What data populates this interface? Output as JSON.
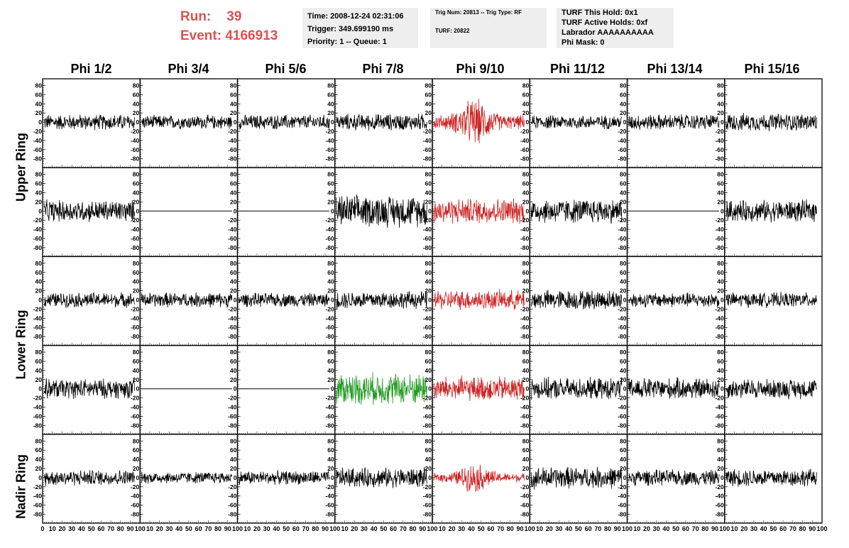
{
  "run_info": {
    "run_label": "Run:",
    "run_value": "39",
    "event_label": "Event:",
    "event_value": "4166913",
    "color": "#d9534f"
  },
  "time_box": {
    "time": "Time: 2008-12-24 02:31:06",
    "trigger": "Trigger: 349.699190 ms",
    "priority": "Priority: 1 -- Queue: 1"
  },
  "trig_box": {
    "trig": "Trig Num: 20813 -- Trig Type: RF",
    "turf": "TURF: 20822"
  },
  "turf_box": {
    "this_hold": "TURF This Hold: 0x1",
    "active_holds": "TURF Active Holds: 0xf",
    "labrador": "Labrador AAAAAAAAAA",
    "phi_mask": "Phi Mask: 0"
  },
  "columns": [
    "Phi 1/2",
    "Phi 3/4",
    "Phi 5/6",
    "Phi 7/8",
    "Phi 9/10",
    "Phi 11/12",
    "Phi 13/14",
    "Phi 15/16"
  ],
  "ring_labels": [
    "Upper Ring",
    "Lower Ring",
    "Nadir Ring"
  ],
  "chart_data": {
    "type": "line",
    "description_rows": 5,
    "columns": 8,
    "ylim": [
      -90,
      90
    ],
    "xlim": [
      0,
      100
    ],
    "y_ticks": [
      80,
      60,
      40,
      20,
      0,
      -20,
      -40,
      -60,
      -80
    ],
    "x_ticks": [
      0,
      10,
      20,
      30,
      40,
      50,
      60,
      70,
      80,
      90,
      100
    ],
    "colors": {
      "normal": "#000000",
      "triggered": "#cc2222",
      "green": "#229922"
    },
    "panels": [
      [
        {
          "style": "normal",
          "amp": 16
        },
        {
          "style": "normal",
          "amp": 14
        },
        {
          "style": "normal",
          "amp": 15
        },
        {
          "style": "normal",
          "amp": 17
        },
        {
          "style": "triggered",
          "amp": 40,
          "burst": true
        },
        {
          "style": "normal",
          "amp": 14
        },
        {
          "style": "normal",
          "amp": 16
        },
        {
          "style": "normal",
          "amp": 18
        }
      ],
      [
        {
          "style": "normal",
          "amp": 22
        },
        {
          "style": "flat",
          "amp": 0
        },
        {
          "style": "flat",
          "amp": 0
        },
        {
          "style": "normal",
          "amp": 32
        },
        {
          "style": "triggered",
          "amp": 26
        },
        {
          "style": "normal",
          "amp": 25
        },
        {
          "style": "flat",
          "amp": 0
        },
        {
          "style": "normal",
          "amp": 22
        }
      ],
      [
        {
          "style": "normal",
          "amp": 15
        },
        {
          "style": "normal",
          "amp": 15
        },
        {
          "style": "normal",
          "amp": 14
        },
        {
          "style": "normal",
          "amp": 18
        },
        {
          "style": "triggered",
          "amp": 20
        },
        {
          "style": "normal",
          "amp": 20
        },
        {
          "style": "normal",
          "amp": 15
        },
        {
          "style": "normal",
          "amp": 15
        }
      ],
      [
        {
          "style": "normal",
          "amp": 20
        },
        {
          "style": "flat",
          "amp": 0
        },
        {
          "style": "flat",
          "amp": 0
        },
        {
          "style": "green",
          "amp": 32
        },
        {
          "style": "triggered",
          "amp": 25
        },
        {
          "style": "normal",
          "amp": 22
        },
        {
          "style": "normal",
          "amp": 22
        },
        {
          "style": "normal",
          "amp": 20
        }
      ],
      [
        {
          "style": "normal",
          "amp": 16
        },
        {
          "style": "normal",
          "amp": 12
        },
        {
          "style": "normal",
          "amp": 14
        },
        {
          "style": "normal",
          "amp": 20
        },
        {
          "style": "triggered",
          "amp": 25,
          "burst": true
        },
        {
          "style": "normal",
          "amp": 22
        },
        {
          "style": "normal",
          "amp": 16
        },
        {
          "style": "normal",
          "amp": 18
        }
      ]
    ]
  }
}
